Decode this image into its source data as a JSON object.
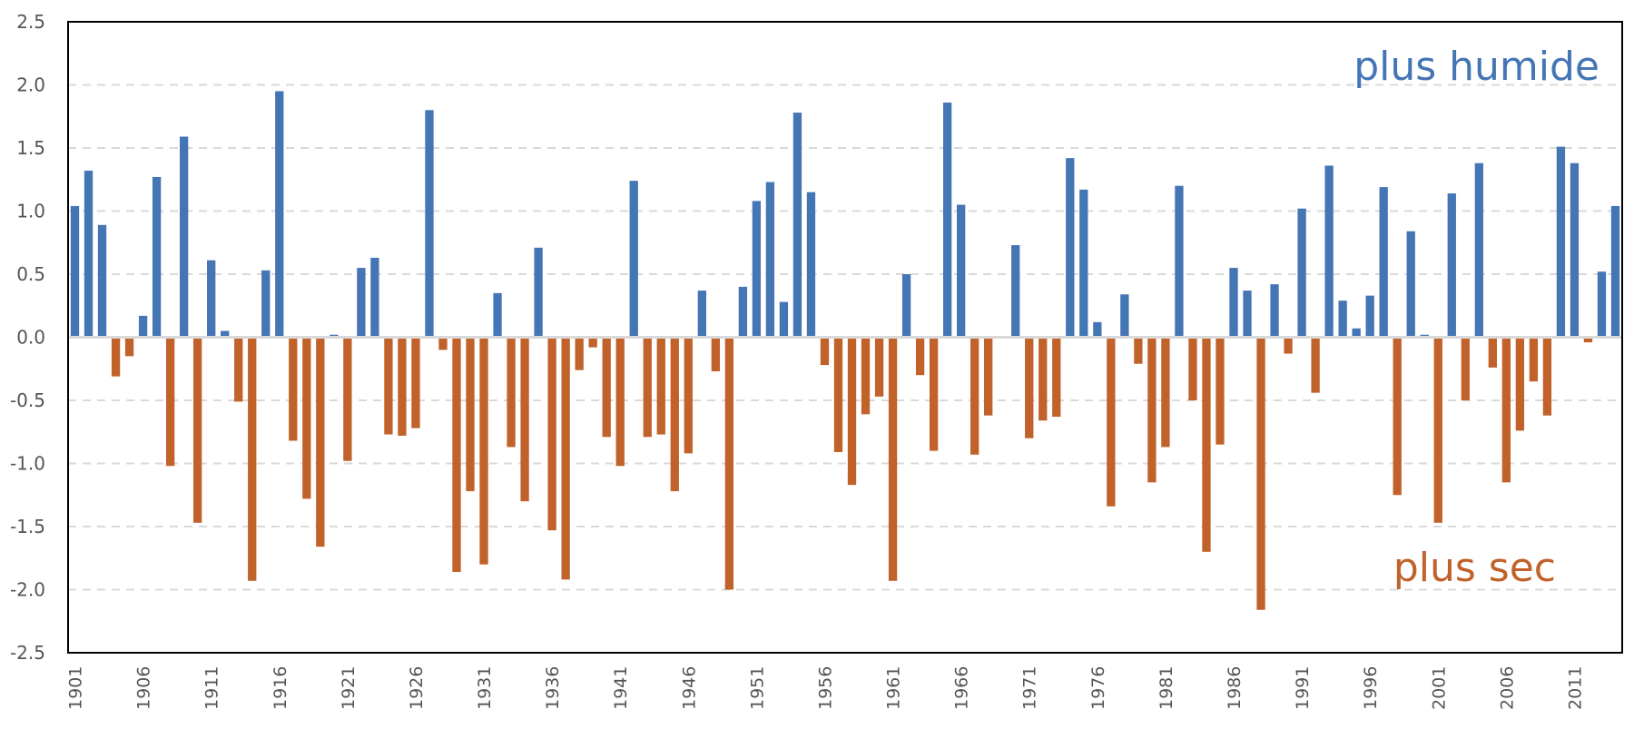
{
  "chart_data": {
    "type": "bar",
    "title": "",
    "xlabel": "",
    "ylabel": "",
    "ylim": [
      -2.5,
      2.5
    ],
    "yticks": [
      "2.5",
      "2.0",
      "1.5",
      "1.0",
      "0.5",
      "0.0",
      "-0.5",
      "-1.0",
      "-1.5",
      "-2.0",
      "-2.5"
    ],
    "grid": true,
    "colors": {
      "positive": "#4475b5",
      "negative": "#c0622a",
      "grid": "#d9d9d9",
      "axis": "#000000"
    },
    "annotations": {
      "wet": "plus humide",
      "dry": "plus sec"
    },
    "x": [
      1901,
      1902,
      1903,
      1904,
      1905,
      1906,
      1907,
      1908,
      1909,
      1910,
      1911,
      1912,
      1913,
      1914,
      1915,
      1916,
      1917,
      1918,
      1919,
      1920,
      1921,
      1922,
      1923,
      1924,
      1925,
      1926,
      1927,
      1928,
      1929,
      1930,
      1931,
      1932,
      1933,
      1934,
      1935,
      1936,
      1937,
      1938,
      1939,
      1940,
      1941,
      1942,
      1943,
      1944,
      1945,
      1946,
      1947,
      1948,
      1949,
      1950,
      1951,
      1952,
      1953,
      1954,
      1955,
      1956,
      1957,
      1958,
      1959,
      1960,
      1961,
      1962,
      1963,
      1964,
      1965,
      1966,
      1967,
      1968,
      1969,
      1970,
      1971,
      1972,
      1973,
      1974,
      1975,
      1976,
      1977,
      1978,
      1979,
      1980,
      1981,
      1982,
      1983,
      1984,
      1985,
      1986,
      1987,
      1988,
      1989,
      1990,
      1991,
      1992,
      1993,
      1994,
      1995,
      1996,
      1997,
      1998,
      1999,
      2000,
      2001,
      2002,
      2003,
      2004,
      2005,
      2006,
      2007,
      2008,
      2009,
      2010,
      2011,
      2012,
      2013,
      2014
    ],
    "xtick_labels": [
      "1901",
      "1906",
      "1911",
      "1916",
      "1921",
      "1926",
      "1931",
      "1936",
      "1941",
      "1946",
      "1951",
      "1956",
      "1961",
      "1966",
      "1971",
      "1976",
      "1981",
      "1986",
      "1991",
      "1996",
      "2001",
      "2006",
      "2011"
    ],
    "values": [
      1.04,
      1.32,
      0.89,
      -0.31,
      -0.15,
      0.17,
      1.27,
      -1.02,
      1.59,
      -1.47,
      0.61,
      0.05,
      -0.51,
      -1.93,
      0.53,
      1.95,
      -0.82,
      -1.28,
      -1.66,
      0.02,
      -0.98,
      0.55,
      0.63,
      -0.77,
      -0.78,
      -0.72,
      1.8,
      -0.1,
      -1.86,
      -1.22,
      -1.8,
      0.35,
      -0.87,
      -1.3,
      0.71,
      -1.53,
      -1.92,
      -0.26,
      -0.08,
      -0.79,
      -1.02,
      1.24,
      -0.79,
      -0.77,
      -1.22,
      -0.92,
      0.37,
      -0.27,
      -2.0,
      0.4,
      1.08,
      1.23,
      0.28,
      1.78,
      1.15,
      -0.22,
      -0.91,
      -1.17,
      -0.61,
      -0.47,
      -1.93,
      0.5,
      -0.3,
      -0.9,
      1.86,
      1.05,
      -0.93,
      -0.62,
      0.0,
      0.73,
      -0.8,
      -0.66,
      -0.63,
      1.42,
      1.17,
      0.12,
      -1.34,
      0.34,
      -0.21,
      -1.15,
      -0.87,
      1.2,
      -0.5,
      -1.7,
      -0.85,
      0.55,
      0.37,
      -2.16,
      0.42,
      -0.13,
      1.02,
      -0.44,
      1.36,
      0.29,
      0.07,
      0.33,
      1.19,
      -1.25,
      0.84,
      0.02,
      -1.47,
      1.14,
      -0.5,
      1.38,
      -0.24,
      -1.15,
      -0.74,
      -0.35,
      -0.62,
      1.51,
      1.38,
      -0.04,
      0.52,
      1.04
    ]
  }
}
